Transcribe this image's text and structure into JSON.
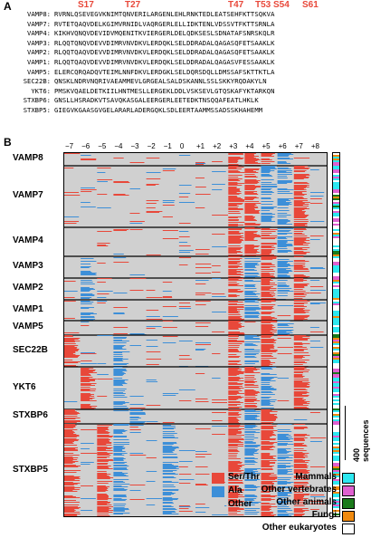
{
  "panel_a_label": "A",
  "panel_b_label": "B",
  "site_labels": [
    "S17",
    "T27",
    "T47",
    "T53",
    "S54",
    "S61"
  ],
  "sequences": [
    {
      "name": "VAMP8:",
      "seq": "RVRNLQSEVEGVKNIMTQNVERILARGENLEHLRNKTEDLEATSEHFKTTSQKVA"
    },
    {
      "name": "VAMP7:",
      "seq": "RVTETQAQVDELKGIMVRNIDLVAQRGERLELLIDKTENLVDSSVTFKTTSRNLA"
    },
    {
      "name": "VAMP4:",
      "seq": "KIKHVQNQVDEVIDVMQENITKVIERGERLDELQDKSESLSDNATAFSNRSKQLR"
    },
    {
      "name": "VAMP3:",
      "seq": "RLQQTQNQVDEVVDIMRVNVDKVLERDQKLSELDDRADALQAGASQFETSAAKLK"
    },
    {
      "name": "VAMP2:",
      "seq": "RLQQTQAQVDEVVDIMRVNVDKVLERDQKLSELDDRADALQAGASQFETSAAKLK"
    },
    {
      "name": "VAMP1:",
      "seq": "RLQQTQAQVDEVVDIMRVNVDKVLERDQKLSELDDRADALQAGASVFESSAAKLK"
    },
    {
      "name": "VAMP5:",
      "seq": "ELERCQRQADQVTEIMLNNFDKVLERDGKLSELDQRSDQLLDMSSAFSKTTKTLA"
    },
    {
      "name": "SEC22B:",
      "seq": "QNSKLNDRVNQRIVAEAMMEVLGRGEALSALDSKANNLSSLSKKYRQDAKYLN"
    },
    {
      "name": "YKT6:",
      "seq": "PMSKVQAELDETKIILHNTMESLLERGEKLDDLVSKSEVLGTQSKAFYKTARKQN"
    },
    {
      "name": "STXBP6:",
      "seq": "GNSLLHSRADKVTSAVQKASGALEERGERLEETEDKTNSQQAFEATLHKLK"
    },
    {
      "name": "STXBP5:",
      "seq": "GIEGVKGAASGVGELARARLADERGQKLSDLEERTAAMMSSADSSKHAHEMM"
    }
  ],
  "groups": [
    "VAMP8",
    "VAMP7",
    "VAMP4",
    "VAMP3",
    "VAMP2",
    "VAMP1",
    "VAMP5",
    "SEC22B",
    "YKT6",
    "STXBP6",
    "STXBP5"
  ],
  "positions": [
    "−7",
    "−6",
    "−5",
    "−4",
    "−3",
    "−2",
    "−1",
    "0",
    "+1",
    "+2",
    "+3",
    "+4",
    "+5",
    "+6",
    "+7",
    "+8"
  ],
  "residue_legend": [
    {
      "label": "Ser/Thr",
      "color": "#e8483a"
    },
    {
      "label": "Ala",
      "color": "#3d8fd8"
    },
    {
      "label": "Other",
      "color": "#d0d0d0"
    }
  ],
  "taxon_legend": [
    {
      "label": "Mammals",
      "color": "#2de8f0"
    },
    {
      "label": "Other vertebrates",
      "color": "#e060d0"
    },
    {
      "label": "Other animals",
      "color": "#1a7a1a"
    },
    {
      "label": "Fungi",
      "color": "#f08a10"
    },
    {
      "label": "Other eukaryotes",
      "color": "#ffffff"
    }
  ],
  "scale_label": "400\nsequences"
}
